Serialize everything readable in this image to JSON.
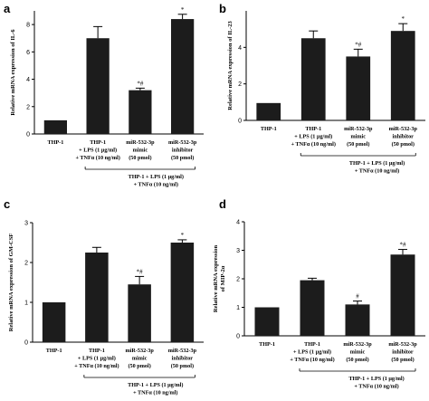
{
  "chart_data": [
    {
      "type": "bar",
      "panel": "a",
      "ylabel": "Relative mRNA expression of IL-6",
      "ylim": [
        0,
        9
      ],
      "yticks": [
        0,
        2,
        4,
        6,
        8
      ],
      "categories": [
        [
          "THP-1"
        ],
        [
          "THP-1",
          "+ LPS (1 μg/ml)",
          "+ TNFα (10 ng/ml)"
        ],
        [
          "miR-532-3p",
          "mimic",
          "(50 pmol)"
        ],
        [
          "miR-532-3p",
          "inhibitor",
          "(50 pmol)"
        ]
      ],
      "values": [
        1.0,
        7.0,
        3.2,
        8.4
      ],
      "errors": [
        0,
        0.85,
        0.15,
        0.35
      ],
      "significance": [
        "",
        "",
        "*#",
        "*"
      ],
      "bracket_label": [
        "THP-1 + LPS (1 μg/ml)",
        "+ TNFα (10 ng/ml)"
      ]
    },
    {
      "type": "bar",
      "panel": "b",
      "ylabel": "Relative mRNA expression of IL-23",
      "ylim": [
        0,
        6
      ],
      "yticks": [
        0,
        2,
        4
      ],
      "categories": [
        [
          "THP-1"
        ],
        [
          "THP-1",
          "+ LPS (1 μg/ml)",
          "+ TNFα (10 ng/ml)"
        ],
        [
          "miR-532-3p",
          "mimic",
          "(50 pmol)"
        ],
        [
          "miR-532-3p",
          "inhibitor",
          "(50 pmol)"
        ]
      ],
      "values": [
        0.95,
        4.5,
        3.5,
        4.9
      ],
      "errors": [
        0,
        0.4,
        0.4,
        0.4
      ],
      "significance": [
        "",
        "",
        "*#",
        "*"
      ],
      "bracket_label": [
        "THP-1 + LPS (1 μg/ml)",
        "+ TNFα (10 ng/ml)"
      ]
    },
    {
      "type": "bar",
      "panel": "c",
      "ylabel": "Relative mRNA expression of GM-CSF",
      "ylim": [
        0,
        3
      ],
      "yticks": [
        0,
        1,
        2,
        3
      ],
      "categories": [
        [
          "THP-1"
        ],
        [
          "THP-1",
          "+ LPS (1 μg/ml)",
          "+ TNFα (10 ng/ml)"
        ],
        [
          "miR-532-3p",
          "mimic",
          "(50 pmol)"
        ],
        [
          "miR-532-3p",
          "inhibitor",
          "(50 pmol)"
        ]
      ],
      "values": [
        1.0,
        2.25,
        1.45,
        2.5
      ],
      "errors": [
        0,
        0.13,
        0.2,
        0.07
      ],
      "significance": [
        "",
        "",
        "*#",
        "*"
      ],
      "bracket_label": [
        "THP-1 + LPS (1 μg/ml)",
        "+ TNFα (10 ng/ml)"
      ]
    },
    {
      "type": "bar",
      "panel": "d",
      "ylabel": [
        "Relative mRNA expression",
        "of MIP-2α"
      ],
      "ylim": [
        0,
        4
      ],
      "yticks": [
        0,
        1,
        2,
        3,
        4
      ],
      "categories": [
        [
          "THP-1"
        ],
        [
          "THP-1",
          "+ LPS (1 μg/ml)",
          "+ TNFα (10 ng/ml)"
        ],
        [
          "miR-532-3p",
          "mimic",
          "(50 pmol)"
        ],
        [
          "miR-532-3p",
          "inhibitor",
          "(50 pmol)"
        ]
      ],
      "values": [
        1.0,
        1.95,
        1.1,
        2.85
      ],
      "errors": [
        0,
        0.07,
        0.12,
        0.18
      ],
      "significance": [
        "",
        "",
        "#",
        "*#"
      ],
      "bracket_label": [
        "THP-1 + LPS (1 μg/ml)",
        "+ TNFα (10 ng/ml)"
      ]
    }
  ]
}
